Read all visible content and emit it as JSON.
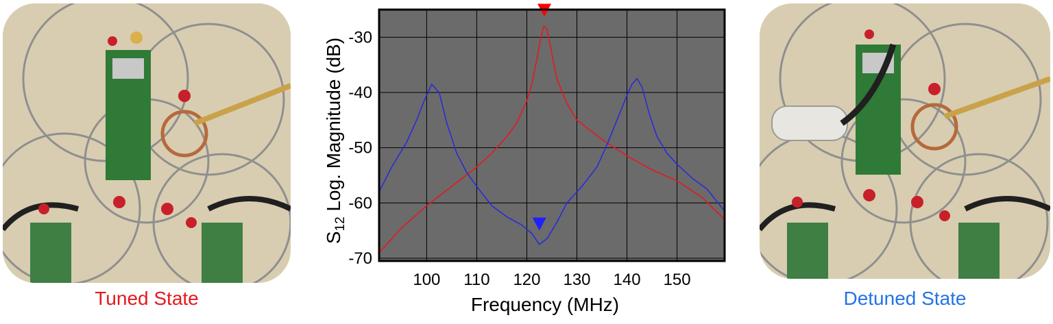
{
  "panels": {
    "left_caption": "Tuned State",
    "right_caption": "Detuned State",
    "colors": {
      "tuned": "#e3191f",
      "detuned": "#2373e6"
    }
  },
  "chart_data": {
    "type": "line",
    "title": "",
    "xlabel": "Frequency (MHz)",
    "ylabel_main": "S",
    "ylabel_sub": "12",
    "ylabel_rest": " Log. Magnitude (dB)",
    "xlim": [
      90.5,
      159.5
    ],
    "ylim": [
      -70.5,
      -25
    ],
    "xticks": [
      100,
      110,
      120,
      130,
      140,
      150
    ],
    "yticks": [
      -30,
      -40,
      -50,
      -60,
      -70
    ],
    "grid": true,
    "background": "#6b6b6b",
    "series": [
      {
        "color": "#e3191f",
        "x": [
          90.5,
          95,
          100,
          105,
          110,
          113,
          116,
          118,
          120,
          121,
          122,
          122.8,
          123.4,
          124,
          125,
          126,
          128,
          130,
          135,
          140,
          145,
          150,
          155,
          159.5
        ],
        "y": [
          -69,
          -64.5,
          -60.5,
          -57,
          -53.5,
          -51,
          -48,
          -45.5,
          -41.5,
          -38.5,
          -34,
          -30,
          -28,
          -28.5,
          -33,
          -37.5,
          -42,
          -45,
          -48.5,
          -51.5,
          -54,
          -56,
          -59,
          -63
        ]
      },
      {
        "color": "#2b2bd9",
        "x": [
          90.5,
          93,
          96,
          98,
          99.5,
          101,
          102.5,
          104,
          106,
          108,
          110,
          113,
          116,
          119,
          121,
          122.5,
          124,
          126,
          128,
          131,
          134,
          136,
          138,
          140,
          141,
          142,
          143,
          144.5,
          146,
          148,
          150,
          153,
          156,
          159.5
        ],
        "y": [
          -58,
          -53.5,
          -49,
          -45,
          -41.5,
          -38.5,
          -40,
          -45.5,
          -51,
          -54.5,
          -57,
          -60.5,
          -62.5,
          -64,
          -65.5,
          -67.5,
          -66.5,
          -63.5,
          -60,
          -57,
          -53.5,
          -49.5,
          -45,
          -40.5,
          -38.5,
          -37.5,
          -39,
          -44,
          -48,
          -51,
          -53,
          -55.5,
          -57.5,
          -61.5
        ]
      }
    ],
    "markers": [
      {
        "x": 123.5,
        "y": -26.3,
        "color": "#ff0000",
        "direction": "down"
      },
      {
        "x": 122.5,
        "y": -65,
        "color": "#1f1fff",
        "direction": "down"
      }
    ]
  }
}
